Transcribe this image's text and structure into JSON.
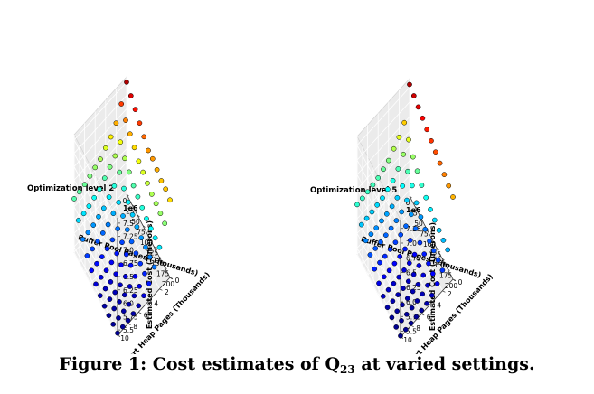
{
  "colors": {
    "pane": "#ebebeb",
    "edge": "#cfcfcf",
    "grid": "#ffffff",
    "marker_edge": "#000000",
    "colormap": "jet"
  },
  "chart_data": [
    {
      "type": "scatter3d",
      "title": "Optimization level 2",
      "xlabel": "Buffer Pool Pages (Thousands)",
      "ylabel": "Sort Heap Pages (Thousands)",
      "zlabel": "Estimated Cost (Timerons)",
      "z_multiplier_label": "1e6",
      "xlim": [
        0,
        200
      ],
      "ylim": [
        0,
        10
      ],
      "zlim": [
        5.4,
        7.6
      ],
      "xticks": [
        "0",
        "25",
        "50",
        "75",
        "100",
        "125",
        "150",
        "175",
        "200"
      ],
      "yticks": [
        "0",
        "2",
        "4",
        "6",
        "8",
        "10"
      ],
      "zticks": [
        "5.5",
        "5.75",
        "6.0",
        "6.25",
        "6.5",
        "6.75",
        "7.0",
        "7.25",
        "7.5"
      ],
      "grid": true,
      "x": [
        0,
        20,
        40,
        60,
        80,
        100,
        120,
        140,
        160,
        180,
        200
      ],
      "y": [
        0,
        1,
        2,
        3,
        4,
        5,
        6,
        7,
        8,
        9,
        10
      ],
      "z": [
        [
          7.5,
          7.4,
          7.3,
          7.2,
          7.1,
          7.0,
          7.0,
          6.95,
          6.9,
          6.9,
          6.85
        ],
        [
          7.2,
          7.05,
          6.95,
          6.85,
          6.75,
          6.7,
          6.65,
          6.6,
          6.58,
          6.55,
          6.52
        ],
        [
          6.95,
          6.75,
          6.6,
          6.5,
          6.4,
          6.35,
          6.3,
          6.25,
          6.22,
          6.2,
          6.18
        ],
        [
          6.8,
          6.6,
          6.45,
          6.3,
          6.2,
          6.12,
          6.05,
          6.0,
          5.98,
          5.95,
          5.92
        ],
        [
          6.7,
          6.5,
          6.3,
          6.15,
          6.05,
          5.95,
          5.88,
          5.82,
          5.78,
          5.75,
          5.72
        ],
        [
          6.6,
          6.4,
          6.2,
          6.05,
          5.92,
          5.82,
          5.75,
          5.7,
          5.65,
          5.62,
          5.6
        ],
        [
          6.55,
          6.3,
          6.1,
          5.95,
          5.82,
          5.72,
          5.66,
          5.6,
          5.57,
          5.55,
          5.52
        ],
        [
          6.5,
          6.25,
          6.05,
          5.9,
          5.76,
          5.66,
          5.6,
          5.55,
          5.52,
          5.5,
          5.48
        ],
        [
          6.45,
          6.2,
          6.0,
          5.85,
          5.72,
          5.62,
          5.56,
          5.52,
          5.5,
          5.48,
          5.46
        ],
        [
          6.42,
          6.17,
          5.97,
          5.82,
          5.7,
          5.6,
          5.54,
          5.5,
          5.48,
          5.46,
          5.45
        ],
        [
          6.4,
          6.15,
          5.95,
          5.8,
          5.68,
          5.58,
          5.52,
          5.48,
          5.46,
          5.45,
          5.44
        ]
      ]
    },
    {
      "type": "scatter3d",
      "title": "Optimization level 5",
      "xlabel": "Buffer Pool Pages (Thousands)",
      "ylabel": "Sort Heap Pages (Thousands)",
      "zlabel": "Estimated Cost (Timerons)",
      "z_multiplier_label": "1e6",
      "xlim": [
        0,
        200
      ],
      "ylim": [
        0,
        10
      ],
      "zlim": [
        5.4,
        7.4
      ],
      "xticks": [
        "0",
        "25",
        "50",
        "75",
        "100",
        "125",
        "150",
        "175",
        "200"
      ],
      "yticks": [
        "0",
        "2",
        "4",
        "6",
        "8",
        "10"
      ],
      "zticks": [
        "5.5",
        "5.75",
        "6.0",
        "6.25",
        "6.5",
        "6.75",
        "7.0",
        "7.25"
      ],
      "grid": true,
      "x": [
        0,
        20,
        40,
        60,
        80,
        100,
        120,
        140,
        160,
        180,
        200
      ],
      "y": [
        0,
        1,
        2,
        3,
        4,
        5,
        6,
        7,
        8,
        9,
        10
      ],
      "z": [
        [
          7.3,
          7.25,
          7.2,
          7.15,
          7.1,
          7.05,
          7.0,
          6.95,
          6.9,
          6.85,
          6.8
        ],
        [
          6.75,
          6.6,
          6.45,
          6.35,
          6.25,
          6.18,
          6.12,
          6.08,
          6.05,
          6.02,
          6.0
        ],
        [
          6.6,
          6.45,
          6.3,
          6.2,
          6.05,
          5.95,
          5.88,
          5.82,
          5.8,
          5.78,
          5.75
        ],
        [
          6.5,
          6.3,
          6.15,
          6.05,
          5.95,
          5.85,
          5.75,
          5.7,
          5.68,
          5.65,
          5.62
        ],
        [
          6.4,
          6.2,
          6.05,
          5.95,
          5.85,
          5.75,
          5.65,
          5.6,
          5.58,
          5.55,
          5.52
        ],
        [
          6.35,
          6.15,
          6.0,
          5.9,
          5.8,
          5.7,
          5.6,
          5.55,
          5.52,
          5.5,
          5.48
        ],
        [
          6.3,
          6.1,
          5.97,
          5.87,
          5.77,
          5.67,
          5.58,
          5.53,
          5.5,
          5.48,
          5.46
        ],
        [
          6.28,
          6.08,
          5.95,
          5.85,
          5.75,
          5.65,
          5.56,
          5.51,
          5.48,
          5.46,
          5.45
        ],
        [
          6.26,
          6.06,
          5.93,
          5.83,
          5.73,
          5.63,
          5.55,
          5.5,
          5.47,
          5.45,
          5.44
        ],
        [
          6.25,
          6.05,
          5.92,
          5.82,
          5.72,
          5.62,
          5.54,
          5.49,
          5.46,
          5.44,
          5.43
        ],
        [
          6.24,
          6.04,
          5.91,
          5.81,
          5.71,
          5.61,
          5.53,
          5.48,
          5.45,
          5.43,
          5.42
        ]
      ]
    }
  ],
  "caption": {
    "prefix": "Figure 1: Cost estimates of Q",
    "subscript": "23",
    "suffix": " at varied settings."
  }
}
